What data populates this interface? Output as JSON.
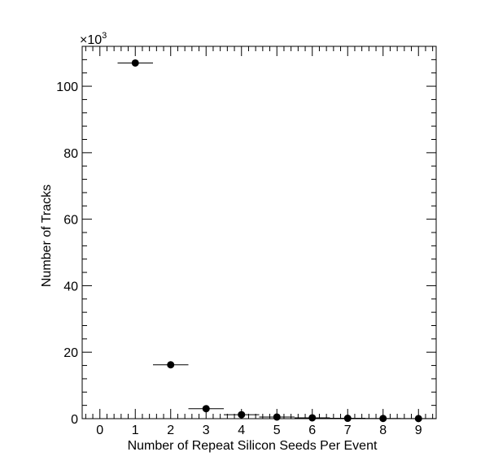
{
  "chart_data": {
    "type": "scatter",
    "title": "",
    "xlabel": "Number of Repeat Silicon Seeds Per Event",
    "ylabel": "Number of Tracks",
    "y_multiplier_label": "×10",
    "y_multiplier_exponent": "3",
    "xlim": [
      -0.5,
      9.5
    ],
    "ylim": [
      0,
      112
    ],
    "x_ticks": [
      "0",
      "1",
      "2",
      "3",
      "4",
      "5",
      "6",
      "7",
      "8",
      "9"
    ],
    "y_ticks": [
      "0",
      "20",
      "40",
      "60",
      "80",
      "100"
    ],
    "grid": false,
    "legend": "none",
    "series": [
      {
        "x": [
          1,
          2,
          3,
          4,
          5,
          6,
          7,
          8,
          9
        ],
        "y": [
          107,
          16.2,
          3.0,
          1.2,
          0.5,
          0.25,
          0.12,
          0.06,
          0.03
        ],
        "x_err": 0.5
      }
    ],
    "marker_color": "#000000"
  }
}
